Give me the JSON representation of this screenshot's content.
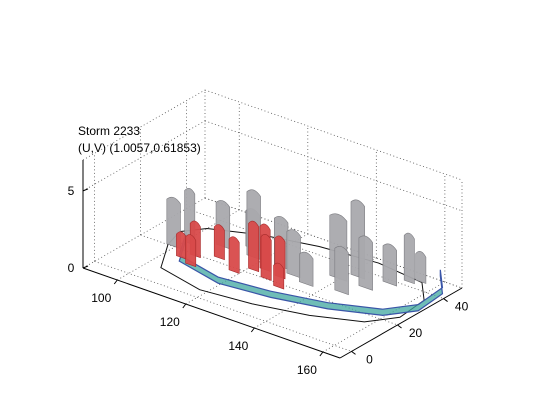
{
  "chart_data": {
    "type": "surface3d",
    "title_lines": [
      "Storm 2233",
      "(U,V) (1.0057,0.61853)"
    ],
    "xlabel": "",
    "ylabel": "",
    "zlabel": "",
    "x_ticks": [
      "100",
      "120",
      "140",
      "160"
    ],
    "y_ticks": [
      "0",
      "20",
      "40"
    ],
    "z_ticks": [
      "0",
      "5"
    ],
    "xlim": [
      90,
      165
    ],
    "ylim": [
      -5,
      48
    ],
    "zlim": [
      0,
      7
    ],
    "grid": true,
    "colors": {
      "surface_gray": "#a9a9ad",
      "surface_red": "#d84a4a",
      "surface_teal": "#3fa79f",
      "surface_blue": "#3a55a8"
    },
    "structures": [
      {
        "x": 101,
        "y": 18,
        "w": 4,
        "h": 3.2,
        "color": "gray"
      },
      {
        "x": 103,
        "y": 22,
        "w": 3,
        "h": 3.6,
        "color": "gray"
      },
      {
        "x": 106,
        "y": 14,
        "w": 3,
        "h": 1.7,
        "color": "red"
      },
      {
        "x": 108,
        "y": 17,
        "w": 3,
        "h": 2.3,
        "color": "red"
      },
      {
        "x": 110,
        "y": 12,
        "w": 3,
        "h": 2.0,
        "color": "red"
      },
      {
        "x": 110,
        "y": 26,
        "w": 4,
        "h": 3.0,
        "color": "gray"
      },
      {
        "x": 113,
        "y": 20,
        "w": 3,
        "h": 2.2,
        "color": "red"
      },
      {
        "x": 116,
        "y": 30,
        "w": 4,
        "h": 2.6,
        "color": "gray"
      },
      {
        "x": 119,
        "y": 26,
        "w": 4,
        "h": 4.4,
        "color": "gray"
      },
      {
        "x": 120,
        "y": 16,
        "w": 3,
        "h": 2.3,
        "color": "red"
      },
      {
        "x": 123,
        "y": 20,
        "w": 3,
        "h": 3.2,
        "color": "red"
      },
      {
        "x": 125,
        "y": 22,
        "w": 3,
        "h": 3.0,
        "color": "red"
      },
      {
        "x": 127,
        "y": 26,
        "w": 4,
        "h": 3.3,
        "color": "gray"
      },
      {
        "x": 128,
        "y": 18,
        "w": 3,
        "h": 2.9,
        "color": "red"
      },
      {
        "x": 130,
        "y": 21,
        "w": 3,
        "h": 2.7,
        "color": "red"
      },
      {
        "x": 132,
        "y": 24,
        "w": 4,
        "h": 3.0,
        "color": "gray"
      },
      {
        "x": 133,
        "y": 16,
        "w": 3,
        "h": 1.6,
        "color": "red"
      },
      {
        "x": 137,
        "y": 22,
        "w": 4,
        "h": 2.1,
        "color": "gray"
      },
      {
        "x": 141,
        "y": 30,
        "w": 5,
        "h": 4.2,
        "color": "gray"
      },
      {
        "x": 144,
        "y": 34,
        "w": 4,
        "h": 5.0,
        "color": "gray"
      },
      {
        "x": 146,
        "y": 24,
        "w": 4,
        "h": 3.0,
        "color": "gray"
      },
      {
        "x": 149,
        "y": 30,
        "w": 4,
        "h": 3.4,
        "color": "gray"
      },
      {
        "x": 152,
        "y": 36,
        "w": 4,
        "h": 2.6,
        "color": "gray"
      },
      {
        "x": 155,
        "y": 40,
        "w": 3,
        "h": 3.2,
        "color": "gray"
      },
      {
        "x": 157,
        "y": 42,
        "w": 3,
        "h": 2.0,
        "color": "gray"
      }
    ]
  }
}
